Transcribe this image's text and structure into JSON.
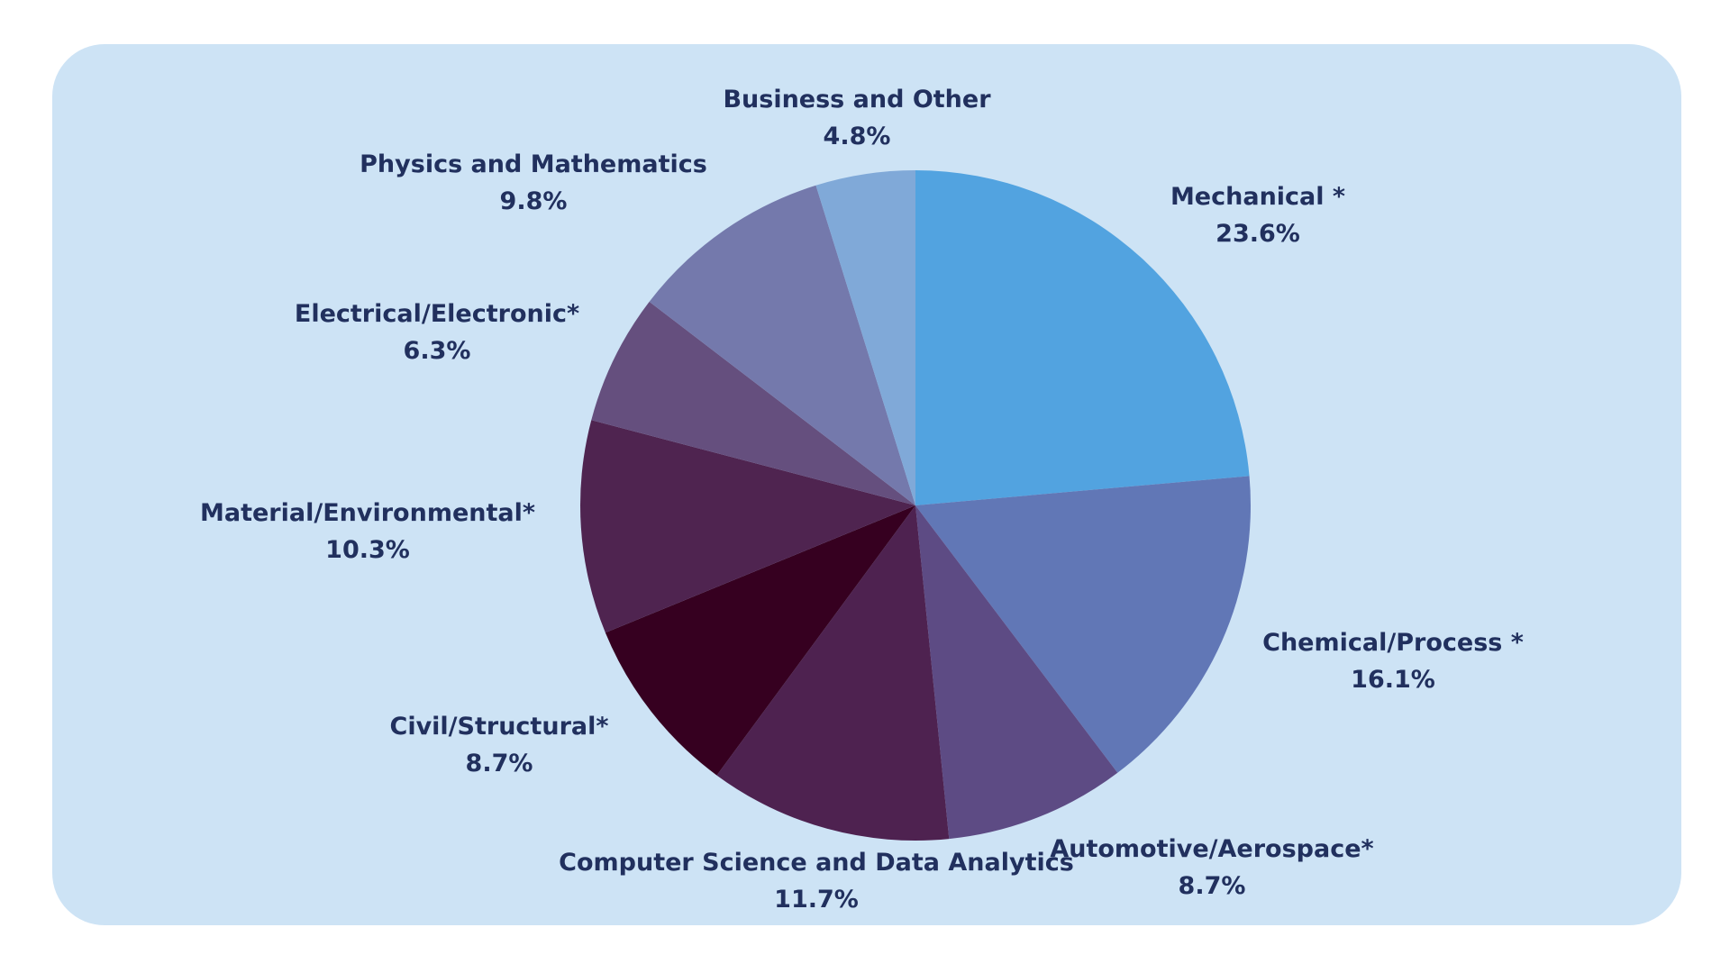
{
  "chart_data": {
    "type": "pie",
    "start_angle_deg": 0,
    "direction": "clockwise",
    "slices": [
      {
        "label": "Mechanical *",
        "value": 23.6,
        "value_label": "23.6%",
        "color": "#52a3e0"
      },
      {
        "label": "Chemical/Process *",
        "value": 16.1,
        "value_label": "16.1%",
        "color": "#6177b6"
      },
      {
        "label": "Automotive/Aerospace*",
        "value": 8.7,
        "value_label": "8.7%",
        "color": "#5d4b84"
      },
      {
        "label": "Computer Science and Data Analytics",
        "value": 11.7,
        "value_label": "11.7%",
        "color": "#4e2250"
      },
      {
        "label": "Civil/Structural*",
        "value": 8.7,
        "value_label": "8.7%",
        "color": "#360020"
      },
      {
        "label": "Material/Environmental*",
        "value": 10.3,
        "value_label": "10.3%",
        "color": "#4f2450"
      },
      {
        "label": "Electrical/Electronic*",
        "value": 6.3,
        "value_label": "6.3%",
        "color": "#654f7e"
      },
      {
        "label": "Physics and Mathematics",
        "value": 9.8,
        "value_label": "9.8%",
        "color": "#7479ac"
      },
      {
        "label": "Business and Other",
        "value": 4.8,
        "value_label": "4.8%",
        "color": "#80a9d8"
      }
    ],
    "colors": {
      "background": "#cde3f5",
      "label_text": "#21305e"
    }
  }
}
